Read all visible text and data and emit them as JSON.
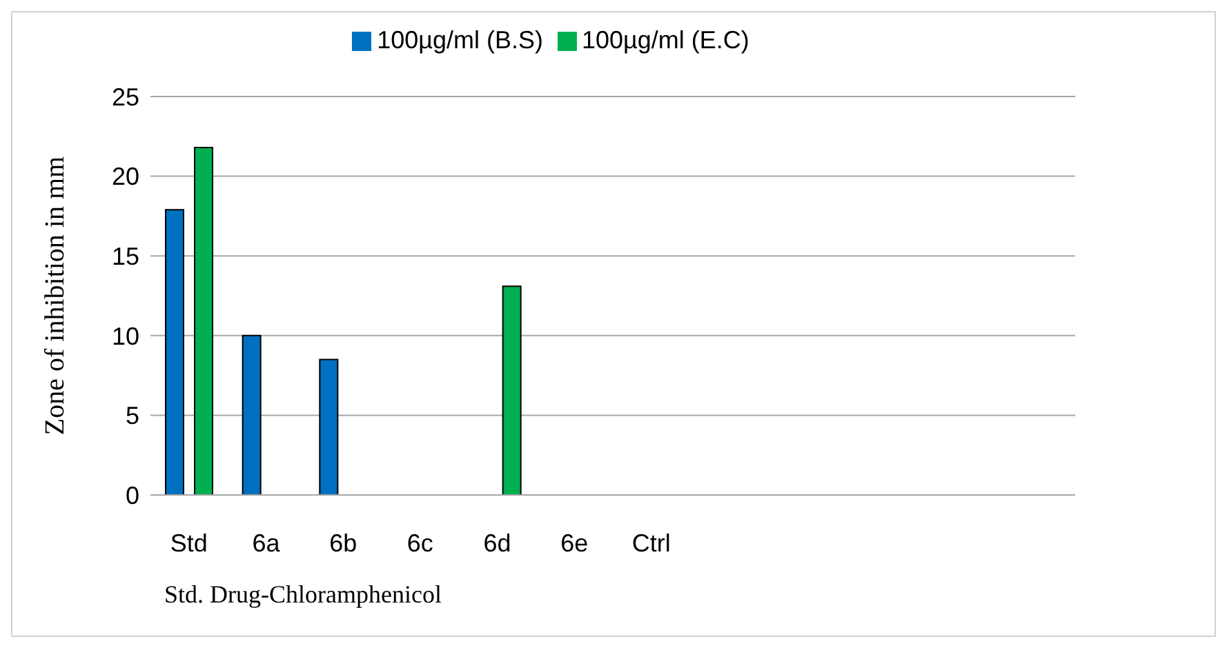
{
  "chart_data": {
    "type": "bar",
    "ylabel": "Zone of inhibition in mm",
    "categories": [
      "Std",
      "6a",
      "6b",
      "6c",
      "6d",
      "6e",
      "Ctrl",
      null,
      null,
      null,
      null,
      null
    ],
    "series": [
      {
        "name": "100µg/ml (B.S)",
        "color": "#0070c0",
        "values": [
          17.9,
          10,
          8.5,
          0,
          0,
          0,
          0,
          0,
          0,
          0,
          0,
          0
        ]
      },
      {
        "name": "100µg/ml (E.C)",
        "color": "#00b050",
        "values": [
          21.8,
          0,
          0,
          0,
          13.1,
          0,
          0,
          0,
          0,
          0,
          0,
          0
        ]
      }
    ],
    "ylim": [
      0,
      25
    ],
    "yticks": [
      0,
      5,
      10,
      15,
      20,
      25
    ],
    "grid": "y",
    "legend": "top",
    "annotations": [
      "Std. Drug-Chloramphenicol"
    ]
  }
}
